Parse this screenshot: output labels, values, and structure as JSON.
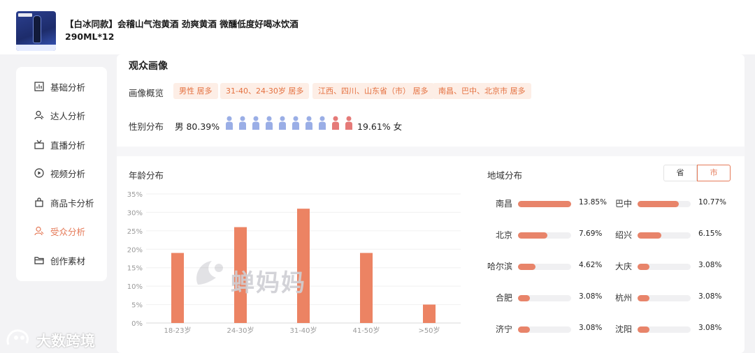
{
  "header": {
    "product_title": "【白冰同款】会稽山气泡黄酒 劲爽黄酒 微醺低度好喝冰饮酒290ML*12"
  },
  "sidebar": {
    "items": [
      {
        "label": "基础分析",
        "icon": "chart-icon",
        "active": false
      },
      {
        "label": "达人分析",
        "icon": "user-icon",
        "active": false
      },
      {
        "label": "直播分析",
        "icon": "live-icon",
        "active": false
      },
      {
        "label": "视频分析",
        "icon": "play-icon",
        "active": false
      },
      {
        "label": "商品卡分析",
        "icon": "bag-icon",
        "active": false
      },
      {
        "label": "受众分析",
        "icon": "user-icon",
        "active": true
      },
      {
        "label": "创作素材",
        "icon": "folder-icon",
        "active": false
      }
    ]
  },
  "audience": {
    "section_title": "观众画像",
    "overview_label": "画像概览",
    "tags": [
      "男性 居多",
      "31-40、24-30岁 居多",
      "江西、四川、山东省（市） 居多",
      "南昌、巴中、北京市 居多"
    ],
    "gender_label": "性别分布",
    "male_text": "男 80.39%",
    "female_text": "19.61% 女",
    "male_share": 80.39,
    "female_share": 19.61,
    "male_color": "#9aaee6",
    "female_color": "#e57a78"
  },
  "age": {
    "title": "年龄分布",
    "chart_data": {
      "type": "bar",
      "categories": [
        "18-23岁",
        "24-30岁",
        "31-40岁",
        "41-50岁",
        ">50岁"
      ],
      "values": [
        19,
        26,
        31,
        19,
        5
      ],
      "yticks": [
        "0%",
        "5%",
        "10%",
        "15%",
        "20%",
        "25%",
        "30%",
        "35%"
      ],
      "ylim": [
        0,
        35
      ],
      "color": "#ec8363"
    },
    "watermark": "蝉妈妈"
  },
  "region": {
    "title": "地域分布",
    "toggle_province": "省",
    "toggle_city": "市",
    "selected": "市",
    "bar_color": "#e8846a",
    "items": [
      {
        "name": "南昌",
        "value": "13.85%",
        "pct": 13.85
      },
      {
        "name": "巴中",
        "value": "10.77%",
        "pct": 10.77
      },
      {
        "name": "北京",
        "value": "7.69%",
        "pct": 7.69
      },
      {
        "name": "绍兴",
        "value": "6.15%",
        "pct": 6.15
      },
      {
        "name": "哈尔滨",
        "value": "4.62%",
        "pct": 4.62
      },
      {
        "name": "大庆",
        "value": "3.08%",
        "pct": 3.08
      },
      {
        "name": "合肥",
        "value": "3.08%",
        "pct": 3.08
      },
      {
        "name": "杭州",
        "value": "3.08%",
        "pct": 3.08
      },
      {
        "name": "济宁",
        "value": "3.08%",
        "pct": 3.08
      },
      {
        "name": "沈阳",
        "value": "3.08%",
        "pct": 3.08
      }
    ]
  },
  "corner_brand": "大数跨境"
}
